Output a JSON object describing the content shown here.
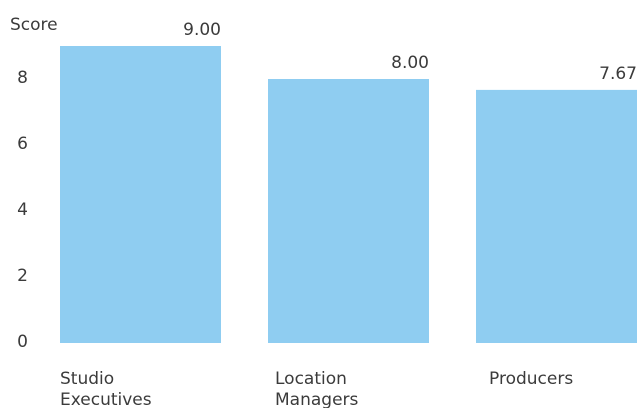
{
  "chart_data": {
    "type": "bar",
    "title": "",
    "xlabel": "",
    "ylabel": "Score",
    "categories": [
      [
        "Studio",
        "Executives"
      ],
      [
        "Location",
        "Managers"
      ],
      [
        "Producers"
      ]
    ],
    "values": [
      9.0,
      8.0,
      7.67
    ],
    "value_labels": [
      "9.00",
      "8.00",
      "7.67"
    ],
    "y_ticks": [
      "0",
      "2",
      "4",
      "6",
      "8"
    ],
    "ylim": [
      0,
      9
    ],
    "grid": false,
    "legend": "none",
    "colors": {
      "bar": "#8fcdf1",
      "text": "#3b3b3b"
    }
  }
}
